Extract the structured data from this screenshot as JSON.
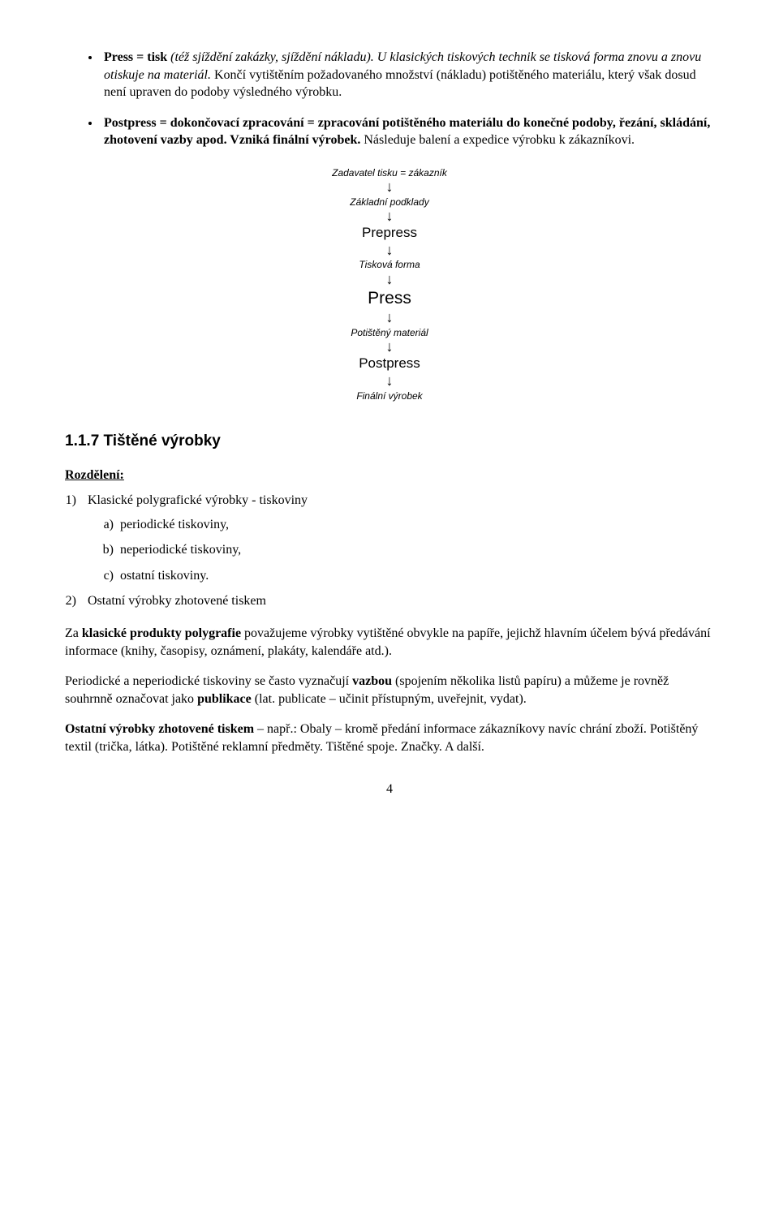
{
  "bullets": [
    {
      "lead_bold": "Press = tisk",
      "lead_rest_italic": " (též sjíždění zakázky, sjíždění nákladu). U klasických tiskových technik se tisková forma znovu a znovu otiskuje na materiál.",
      "tail_plain": " Končí vytištěním požadovaného množství (nákladu) potištěného materiálu, který však dosud není upraven do podoby výsledného výrobku."
    },
    {
      "lead_bold": "Postpress = dokončovací zpracování = zpracování potištěného materiálu do konečné podoby, řezání, skládání, zhotovení vazby apod. Vzniká finální výrobek.",
      "tail_plain": " Následuje balení a expedice výrobku k zákazníkovi."
    }
  ],
  "flow": [
    {
      "text": "Zadavatel tisku = zákazník",
      "cls": "flow-small"
    },
    {
      "text": "Základní podklady",
      "cls": "flow-small"
    },
    {
      "text": "Prepress",
      "cls": "flow-mid"
    },
    {
      "text": "Tisková forma",
      "cls": "flow-small"
    },
    {
      "text": "Press",
      "cls": "flow-big"
    },
    {
      "text": "Potištěný materiál",
      "cls": "flow-small"
    },
    {
      "text": "Postpress",
      "cls": "flow-mid"
    },
    {
      "text": "Finální výrobek",
      "cls": "flow-small"
    }
  ],
  "section_heading": "1.1.7 Tištěné výrobky",
  "rozdeleni_label": "Rozdělení:",
  "group1_label": "Klasické polygrafické výrobky - tiskoviny",
  "group1_items": [
    "periodické tiskoviny,",
    "neperiodické tiskoviny,",
    "ostatní tiskoviny."
  ],
  "group2_label": "Ostatní výrobky zhotovené tiskem",
  "para1": {
    "pre": "Za ",
    "b1": "klasické produkty polygrafie",
    "post": " považujeme výrobky vytištěné obvykle na papíře, jejichž hlavním účelem bývá předávání informace (knihy, časopisy, oznámení, plakáty, kalendáře atd.)."
  },
  "para2": {
    "pre": "Periodické a neperiodické tiskoviny se často vyznačují ",
    "b1": "vazbou",
    "mid": " (spojením několika listů papíru) a můžeme je rovněž souhrnně označovat jako ",
    "b2": "publikace",
    "post": " (lat. publicate – učinit přístupným, uveřejnit, vydat)."
  },
  "para3": {
    "b1": "Ostatní výrobky zhotovené tiskem",
    "post": " – např.: Obaly – kromě předání informace zákazníkovy navíc chrání zboží. Potištěný textil (trička, látka). Potištěné reklamní předměty. Tištěné spoje. Značky. A další."
  },
  "page_number": "4"
}
